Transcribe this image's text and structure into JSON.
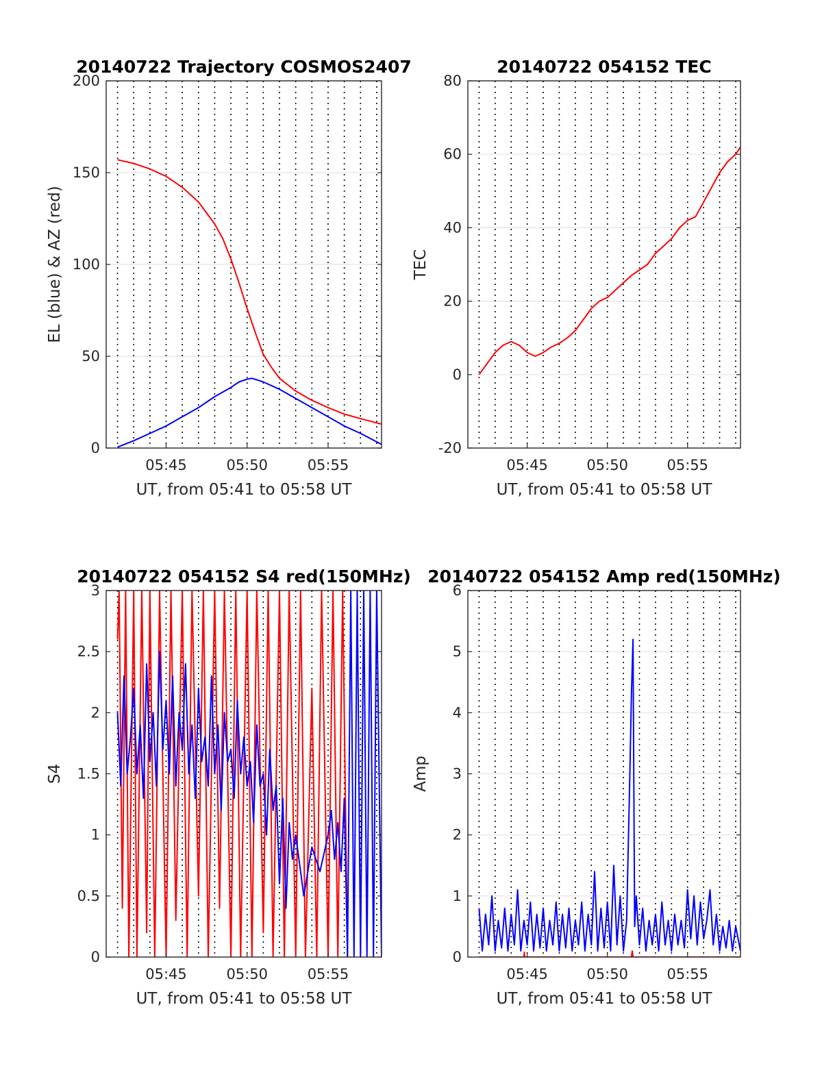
{
  "figure": {
    "background": "#ffffff",
    "red": "#ff0000",
    "blue": "#0000ff"
  },
  "chart_data": [
    {
      "id": "trajectory",
      "type": "line",
      "title": "20140722 Trajectory COSMOS2407",
      "xlabel": "UT, from 05:41 to 05:58 UT",
      "ylabel": "EL (blue) & AZ (red)",
      "xlim": [
        41.3,
        58.3
      ],
      "ylim": [
        0,
        200
      ],
      "xticks": [
        45,
        50,
        55
      ],
      "xticklabels": [
        "05:45",
        "05:50",
        "05:55"
      ],
      "yticks": [
        0,
        50,
        100,
        150,
        200
      ],
      "yticklabels": [
        "0",
        "50",
        "100",
        "150",
        "200"
      ],
      "minute_gridlines": true,
      "grid": true,
      "series": [
        {
          "color": "#ff0000",
          "x": [
            42.0,
            43.0,
            44.0,
            45.0,
            46.0,
            47.0,
            48.0,
            48.5,
            49.0,
            49.5,
            50.0,
            50.5,
            51.0,
            51.5,
            52.0,
            53.0,
            54.0,
            55.0,
            56.0,
            57.0,
            58.3
          ],
          "y": [
            157,
            155,
            152,
            148,
            142,
            134,
            122,
            114,
            103,
            90,
            76,
            63,
            51,
            44,
            38,
            31,
            26,
            22,
            18.5,
            16,
            13
          ]
        },
        {
          "color": "#0000ff",
          "x": [
            42.0,
            43.0,
            44.0,
            45.0,
            46.0,
            47.0,
            48.0,
            49.0,
            49.5,
            50.0,
            50.3,
            51.0,
            52.0,
            53.0,
            54.0,
            55.0,
            56.0,
            57.0,
            58.3
          ],
          "y": [
            0.5,
            4,
            8,
            12,
            17,
            22,
            28,
            33,
            36,
            37.5,
            38,
            36,
            32,
            27,
            22,
            17,
            12,
            8,
            2
          ]
        }
      ]
    },
    {
      "id": "tec",
      "type": "line",
      "title": "20140722 054152 TEC",
      "xlabel": "UT, from 05:41 to 05:58 UT",
      "ylabel": "TEC",
      "xlim": [
        41.3,
        58.3
      ],
      "ylim": [
        -20,
        80
      ],
      "xticks": [
        45,
        50,
        55
      ],
      "xticklabels": [
        "05:45",
        "05:50",
        "05:55"
      ],
      "yticks": [
        -20,
        0,
        20,
        40,
        60,
        80
      ],
      "yticklabels": [
        "-20",
        "0",
        "20",
        "40",
        "60",
        "80"
      ],
      "minute_gridlines": true,
      "grid": true,
      "series": [
        {
          "color": "#ff0000",
          "x": [
            42.0,
            42.5,
            43.0,
            43.5,
            44.0,
            44.5,
            45.0,
            45.5,
            46.0,
            46.5,
            47.0,
            47.5,
            48.0,
            48.5,
            49.0,
            49.5,
            50.0,
            50.5,
            51.0,
            51.5,
            52.0,
            52.5,
            53.0,
            53.5,
            54.0,
            54.5,
            55.0,
            55.5,
            56.0,
            56.5,
            57.0,
            57.5,
            58.0,
            58.3
          ],
          "y": [
            0,
            3,
            6,
            8,
            9,
            8,
            6,
            5,
            6,
            7.5,
            8.5,
            10,
            12,
            15,
            18,
            20,
            21,
            23,
            25,
            27,
            28.5,
            30,
            33,
            35,
            37,
            40,
            42,
            43,
            47,
            51,
            55,
            58,
            60,
            62
          ]
        }
      ]
    },
    {
      "id": "s4",
      "type": "line",
      "title": "20140722 054152 S4 red(150MHz)",
      "xlabel": "UT, from 05:41 to 05:58 UT",
      "ylabel": "S4",
      "xlim": [
        41.3,
        58.3
      ],
      "ylim": [
        0,
        3
      ],
      "xticks": [
        45,
        50,
        55
      ],
      "xticklabels": [
        "05:45",
        "05:50",
        "05:55"
      ],
      "yticks": [
        0,
        0.5,
        1,
        1.5,
        2,
        2.5,
        3
      ],
      "yticklabels": [
        "0",
        "0.5",
        "1",
        "1.5",
        "2",
        "2.5",
        "3"
      ],
      "minute_gridlines": true,
      "grid": true,
      "series": [
        {
          "color": "#ff0000",
          "x": [
            42.0,
            42.1,
            42.3,
            42.5,
            42.7,
            43.0,
            43.2,
            43.5,
            43.8,
            44.0,
            44.3,
            44.6,
            45.0,
            45.3,
            45.6,
            46.0,
            46.3,
            46.6,
            47.0,
            47.3,
            47.6,
            48.0,
            48.3,
            48.6,
            49.0,
            49.3,
            49.6,
            50.0,
            50.3,
            50.6,
            51.0,
            51.3,
            51.6,
            52.0,
            52.3,
            52.6,
            53.0,
            53.3,
            53.6,
            54.0,
            54.3,
            54.6,
            55.0,
            55.3,
            55.6,
            55.9,
            56.2
          ],
          "y": [
            2.6,
            3,
            0.4,
            3,
            0,
            3,
            0,
            3,
            0.2,
            3,
            0,
            3,
            0,
            3,
            0.3,
            3,
            0,
            3,
            0.5,
            3,
            0,
            3,
            0.4,
            3,
            0,
            3,
            0,
            3,
            0,
            3,
            0.2,
            3,
            0,
            3,
            0,
            3,
            0,
            3,
            0,
            2.2,
            0,
            3,
            0,
            3,
            0,
            3,
            0
          ]
        },
        {
          "color": "#0000ff",
          "x": [
            42.0,
            42.2,
            42.4,
            42.6,
            42.8,
            43.0,
            43.2,
            43.4,
            43.6,
            43.8,
            44.0,
            44.2,
            44.4,
            44.6,
            44.8,
            45.0,
            45.2,
            45.4,
            45.6,
            45.8,
            46.0,
            46.2,
            46.4,
            46.6,
            46.8,
            47.0,
            47.2,
            47.4,
            47.6,
            47.8,
            48.0,
            48.2,
            48.4,
            48.6,
            48.8,
            49.0,
            49.2,
            49.4,
            49.6,
            49.8,
            50.0,
            50.2,
            50.4,
            50.6,
            50.8,
            51.0,
            51.2,
            51.4,
            51.6,
            51.8,
            52.0,
            52.2,
            52.4,
            52.6,
            52.8,
            53.0,
            53.5,
            54.0,
            54.5,
            55.0,
            55.2,
            55.4,
            55.6,
            55.8,
            56.0,
            56.2,
            56.4,
            56.6,
            56.8,
            57.0,
            57.2,
            57.4,
            57.6,
            57.8,
            58.0,
            58.3
          ],
          "y": [
            2.0,
            1.4,
            2.3,
            1.5,
            1.8,
            2.2,
            1.5,
            1.9,
            1.3,
            2.4,
            1.6,
            2.0,
            1.4,
            2.5,
            1.7,
            2.1,
            1.5,
            2.3,
            1.4,
            2.0,
            1.7,
            2.4,
            1.5,
            1.9,
            1.3,
            2.2,
            1.6,
            1.8,
            1.4,
            2.3,
            1.5,
            1.9,
            1.2,
            2.0,
            1.6,
            1.7,
            1.3,
            2.1,
            1.5,
            1.8,
            1.4,
            1.6,
            1.1,
            1.9,
            1.4,
            1.5,
            1.0,
            1.7,
            1.2,
            1.4,
            0.6,
            1.3,
            0.4,
            1.1,
            0.8,
            1.0,
            0.5,
            0.9,
            0.7,
            1.0,
            1.2,
            0.8,
            1.1,
            0.7,
            1.3,
            0,
            3,
            0,
            3,
            0,
            3,
            0,
            3,
            0,
            3,
            0
          ]
        }
      ]
    },
    {
      "id": "amp",
      "type": "line",
      "title": "20140722 054152 Amp red(150MHz)",
      "xlabel": "UT, from 05:41 to 05:58 UT",
      "ylabel": "Amp",
      "xlim": [
        41.3,
        58.3
      ],
      "ylim": [
        0,
        6
      ],
      "xticks": [
        45,
        50,
        55
      ],
      "xticklabels": [
        "05:45",
        "05:50",
        "05:55"
      ],
      "yticks": [
        0,
        1,
        2,
        3,
        4,
        5,
        6
      ],
      "yticklabels": [
        "0",
        "1",
        "2",
        "3",
        "4",
        "5",
        "6"
      ],
      "minute_gridlines": true,
      "grid": true,
      "series": [
        {
          "color": "#ff0000",
          "x": [
            42.0,
            44.8,
            44.82,
            44.84,
            51.5,
            51.55,
            51.6,
            58.3
          ],
          "y": [
            0,
            0,
            0.08,
            0,
            0,
            0.1,
            0,
            0
          ]
        },
        {
          "color": "#0000ff",
          "x": [
            42.0,
            42.2,
            42.4,
            42.6,
            42.8,
            43.0,
            43.2,
            43.4,
            43.6,
            43.8,
            44.0,
            44.2,
            44.4,
            44.6,
            44.8,
            45.0,
            45.2,
            45.4,
            45.6,
            45.8,
            46.0,
            46.2,
            46.4,
            46.6,
            46.8,
            47.0,
            47.2,
            47.4,
            47.6,
            47.8,
            48.0,
            48.2,
            48.4,
            48.6,
            48.8,
            49.0,
            49.2,
            49.4,
            49.6,
            49.8,
            50.0,
            50.2,
            50.4,
            50.6,
            50.8,
            51.0,
            51.2,
            51.4,
            51.5,
            51.6,
            51.7,
            51.8,
            52.0,
            52.2,
            52.4,
            52.6,
            52.8,
            53.0,
            53.2,
            53.4,
            53.6,
            53.8,
            54.0,
            54.2,
            54.4,
            54.6,
            54.8,
            55.0,
            55.2,
            55.4,
            55.6,
            55.8,
            56.0,
            56.2,
            56.4,
            56.6,
            56.8,
            57.0,
            57.2,
            57.4,
            57.6,
            57.8,
            58.0,
            58.3
          ],
          "y": [
            0.8,
            0.1,
            0.7,
            0.2,
            1.0,
            0.1,
            0.6,
            0.15,
            0.8,
            0.1,
            0.7,
            0.2,
            1.1,
            0.1,
            0.6,
            0.2,
            0.9,
            0.1,
            0.7,
            0.15,
            0.8,
            0.1,
            0.6,
            0.2,
            0.9,
            0.1,
            0.7,
            0.15,
            0.8,
            0.1,
            0.6,
            0.2,
            0.9,
            0.1,
            0.7,
            0.2,
            1.4,
            0.1,
            0.8,
            0.15,
            0.9,
            0.1,
            1.5,
            0.2,
            1.0,
            0.1,
            0.6,
            3.0,
            4.3,
            5.2,
            0.5,
            1.0,
            0.2,
            0.8,
            0.1,
            0.6,
            0.2,
            0.7,
            0.1,
            0.9,
            0.2,
            0.6,
            0.1,
            0.7,
            0.2,
            0.6,
            0.15,
            1.1,
            0.3,
            1.0,
            0.2,
            0.9,
            0.3,
            0.6,
            1.1,
            0.2,
            0.7,
            0.1,
            0.5,
            0.15,
            0.6,
            0.1,
            0.5,
            0.1
          ]
        }
      ]
    }
  ]
}
